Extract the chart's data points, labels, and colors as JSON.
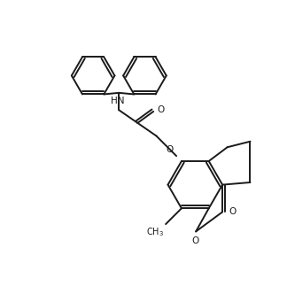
{
  "bg_color": "#ffffff",
  "line_color": "#1a1a1a",
  "line_width": 1.4,
  "font_size": 7.5,
  "figsize": [
    3.24,
    3.32
  ],
  "dpi": 100,
  "xlim": [
    0,
    10
  ],
  "ylim": [
    0,
    10.23
  ]
}
